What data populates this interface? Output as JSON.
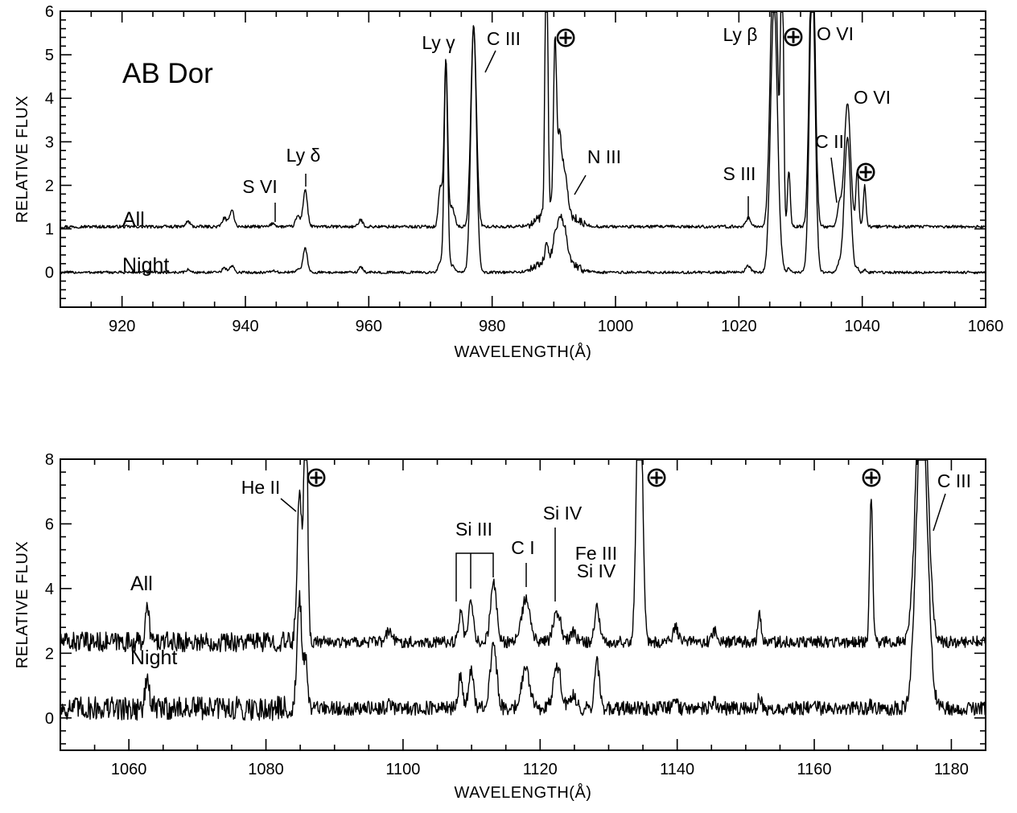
{
  "chart_data": [
    {
      "type": "line",
      "title": "AB Dor",
      "xlabel": "WAVELENGTH(Å)",
      "ylabel": "RELATIVE FLUX",
      "xlim": [
        910,
        1060
      ],
      "ylim": [
        -0.8,
        6
      ],
      "xticks": [
        920,
        940,
        960,
        980,
        1000,
        1020,
        1040,
        1060
      ],
      "yticks": [
        0,
        1,
        2,
        3,
        4,
        5,
        6
      ],
      "grid": false,
      "series": [
        {
          "name": "All",
          "offset": 1.05,
          "label_at": [
            912,
            1.3
          ],
          "noise": 0.035
        },
        {
          "name": "Night",
          "offset": 0.0,
          "label_at": [
            912,
            0.4
          ],
          "noise": 0.03
        }
      ],
      "lines": [
        {
          "w": 930.7,
          "all": 0.12,
          "night": 0.06,
          "width": 0.35
        },
        {
          "w": 936.6,
          "all": 0.2,
          "night": 0.1,
          "width": 0.35
        },
        {
          "w": 937.8,
          "all": 0.4,
          "night": 0.15,
          "width": 0.35
        },
        {
          "w": 944.5,
          "all": 0.08,
          "night": 0.04,
          "width": 0.35
        },
        {
          "w": 948.5,
          "all": 0.25,
          "night": 0.08,
          "width": 0.35
        },
        {
          "w": 949.7,
          "all": 0.85,
          "night": 0.55,
          "width": 0.35
        },
        {
          "w": 958.7,
          "all": 0.15,
          "night": 0.12,
          "width": 0.35
        },
        {
          "w": 971.6,
          "all": 0.95,
          "night": 0.25,
          "width": 0.3
        },
        {
          "w": 972.5,
          "all": 3.85,
          "night": 4.9,
          "width": 0.28
        },
        {
          "w": 973.5,
          "all": 0.45,
          "night": 0.15,
          "width": 0.4
        },
        {
          "w": 977.0,
          "all": 4.6,
          "night": 5.7,
          "width": 0.45
        },
        {
          "w": 988.8,
          "all": 7.0,
          "night": 0.35,
          "width": 0.22
        },
        {
          "w": 990.2,
          "all": 3.8,
          "night": 0.45,
          "width": 0.25
        },
        {
          "w": 990.9,
          "all": 1.3,
          "night": 0.6,
          "width": 0.3
        },
        {
          "w": 991.6,
          "all": 0.95,
          "night": 0.7,
          "width": 0.5
        },
        {
          "w": 1021.5,
          "all": 0.2,
          "night": 0.15,
          "width": 0.4
        },
        {
          "w": 1025.7,
          "all": 7.0,
          "night": 6.2,
          "width": 0.55
        },
        {
          "w": 1027.0,
          "all": 7.0,
          "night": 0.1,
          "width": 0.22
        },
        {
          "w": 1028.1,
          "all": 1.3,
          "night": 0.1,
          "width": 0.22
        },
        {
          "w": 1031.9,
          "all": 7.0,
          "night": 7.0,
          "width": 0.45
        },
        {
          "w": 1036.3,
          "all": 0.5,
          "night": 0.2,
          "width": 0.35
        },
        {
          "w": 1037.6,
          "all": 2.85,
          "night": 3.1,
          "width": 0.5
        },
        {
          "w": 1039.2,
          "all": 1.3,
          "night": 0.1,
          "width": 0.22
        },
        {
          "w": 1040.4,
          "all": 0.95,
          "night": 0.05,
          "width": 0.22
        }
      ],
      "annotations": [
        {
          "text": "S VI",
          "x": 945,
          "y": 1.9
        },
        {
          "text": "Ly δ",
          "x": 949.7,
          "y": 2.35
        },
        {
          "text": "Ly γ",
          "x": 972.5,
          "y": 5.4
        },
        {
          "text": "C III",
          "x": 977,
          "y": 5.45
        },
        {
          "text": "⊕",
          "x": 990.2,
          "y": 5.45
        },
        {
          "text": "N III",
          "x": 993,
          "y": 2.75
        },
        {
          "text": "S III",
          "x": 1021.5,
          "y": 2.3
        },
        {
          "text": "Ly β",
          "x": 1025.7,
          "y": 5.55
        },
        {
          "text": "⊕",
          "x": 1027,
          "y": 5.45
        },
        {
          "text": "O VI",
          "x": 1031.9,
          "y": 5.55
        },
        {
          "text": "O VI",
          "x": 1037.6,
          "y": 4.2
        },
        {
          "text": "C II",
          "x": 1036.3,
          "y": 3.0
        },
        {
          "text": "⊕",
          "x": 1039.2,
          "y": 2.45
        }
      ]
    },
    {
      "type": "line",
      "title": "",
      "xlabel": "WAVELENGTH(Å)",
      "ylabel": "RELATIVE FLUX",
      "xlim": [
        1050,
        1185
      ],
      "ylim": [
        -1,
        8
      ],
      "xticks": [
        1060,
        1080,
        1100,
        1120,
        1140,
        1160,
        1180
      ],
      "yticks": [
        0,
        2,
        4,
        6,
        8
      ],
      "grid": false,
      "series": [
        {
          "name": "All",
          "offset": 2.35,
          "label_at": [
            1058,
            4.5
          ],
          "noise": 0.18
        },
        {
          "name": "Night",
          "offset": 0.3,
          "label_at": [
            1058,
            2.3
          ],
          "noise": 0.22
        }
      ],
      "lines": [
        {
          "w": 1062.7,
          "all": 1.0,
          "night": 0.9,
          "width": 0.3
        },
        {
          "w": 1084.9,
          "all": 4.5,
          "night": 3.3,
          "width": 0.35
        },
        {
          "w": 1085.8,
          "all": 9.0,
          "night": 1.3,
          "width": 0.25
        },
        {
          "w": 1098.0,
          "all": 0.35,
          "night": 0.1,
          "width": 0.4
        },
        {
          "w": 1108.4,
          "all": 0.9,
          "night": 1.0,
          "width": 0.3
        },
        {
          "w": 1109.9,
          "all": 1.2,
          "night": 1.2,
          "width": 0.35
        },
        {
          "w": 1113.2,
          "all": 1.8,
          "night": 2.0,
          "width": 0.45
        },
        {
          "w": 1117.9,
          "all": 1.3,
          "night": 1.2,
          "width": 0.6
        },
        {
          "w": 1122.5,
          "all": 0.9,
          "night": 1.3,
          "width": 0.55
        },
        {
          "w": 1124.8,
          "all": 0.3,
          "night": 0.4,
          "width": 0.4
        },
        {
          "w": 1128.3,
          "all": 1.1,
          "night": 1.4,
          "width": 0.35
        },
        {
          "w": 1134.5,
          "all": 10.0,
          "night": 0.0,
          "width": 0.4
        },
        {
          "w": 1139.8,
          "all": 0.45,
          "night": 0.1,
          "width": 0.35
        },
        {
          "w": 1145.5,
          "all": 0.35,
          "night": 0.2,
          "width": 0.35
        },
        {
          "w": 1152.0,
          "all": 0.9,
          "night": 0.35,
          "width": 0.25
        },
        {
          "w": 1168.3,
          "all": 4.6,
          "night": 0.1,
          "width": 0.22
        },
        {
          "w": 1175.7,
          "all": 9.5,
          "night": 9.5,
          "width": 0.8
        }
      ],
      "annotations": [
        {
          "text": "He II",
          "x": 1085,
          "y": 7.0
        },
        {
          "text": "⊕",
          "x": 1087,
          "y": 7.3
        },
        {
          "text": "Si III",
          "x": 1110.8,
          "y": 5.8
        },
        {
          "text": "C I",
          "x": 1117.9,
          "y": 5.2
        },
        {
          "text": "Si IV",
          "x": 1122.5,
          "y": 6.2
        },
        {
          "text": "Fe III",
          "x": 1128.3,
          "y": 4.8
        },
        {
          "text": "Si IV",
          "x": 1128.3,
          "y": 4.1
        },
        {
          "text": "⊕",
          "x": 1137.4,
          "y": 7.3
        },
        {
          "text": "⊕",
          "x": 1168.3,
          "y": 7.3
        },
        {
          "text": "C III",
          "x": 1177,
          "y": 7.0
        }
      ]
    }
  ]
}
